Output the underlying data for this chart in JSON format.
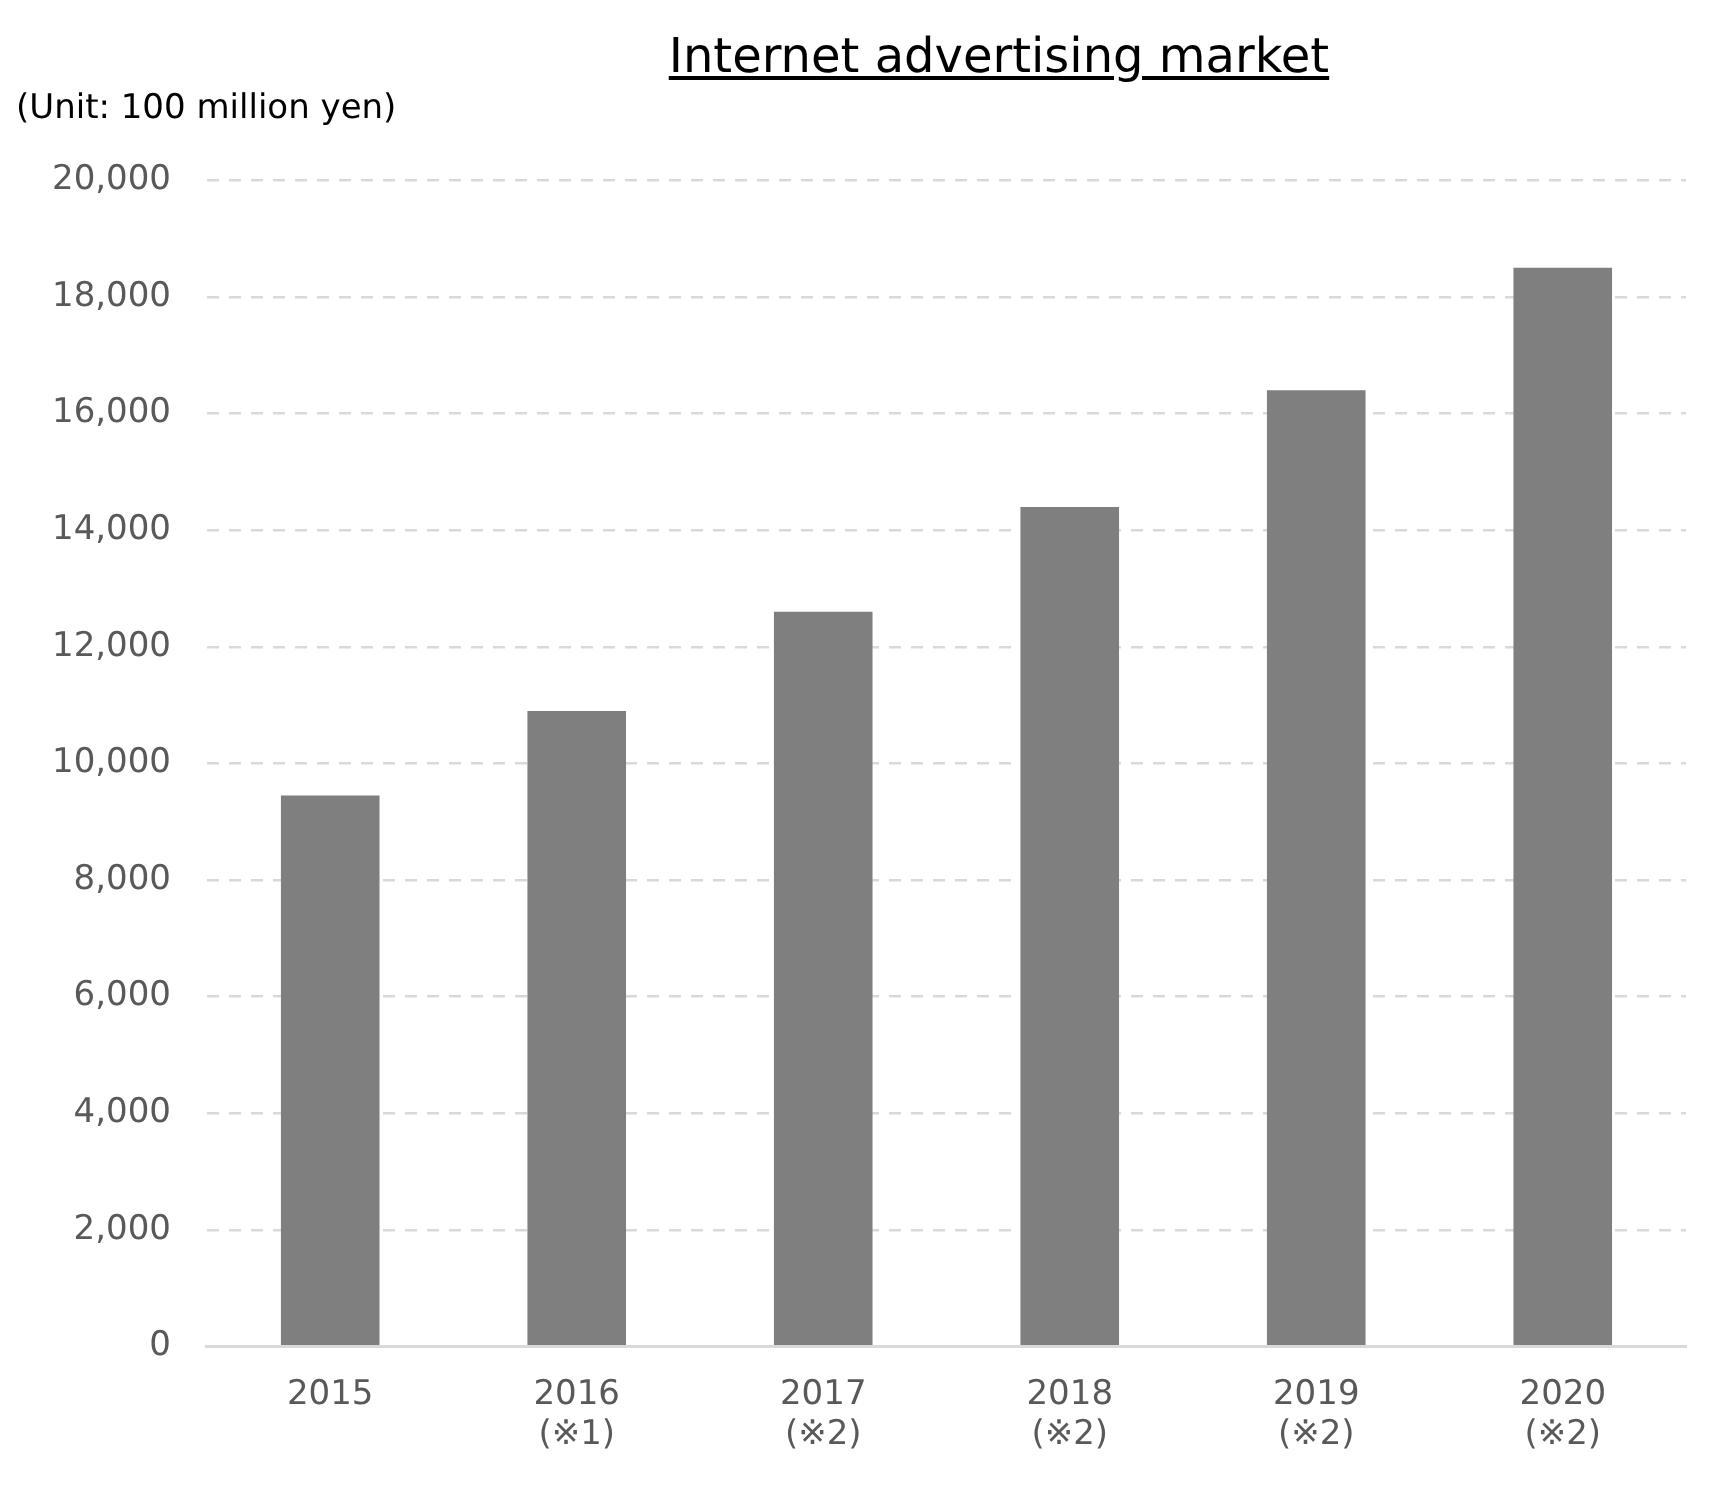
{
  "chart_data": {
    "type": "bar",
    "title": "Internet advertising market",
    "ylabel": "(Unit: 100 million yen)",
    "categories": [
      "2015",
      "2016\n(※1)",
      "2017\n(※2)",
      "2018\n(※2)",
      "2019\n(※2)",
      "2020\n(※2)"
    ],
    "values": [
      9450,
      10900,
      12600,
      14400,
      16400,
      18500
    ],
    "color": "#7f7f7f",
    "ylim": [
      0,
      20000
    ],
    "yticks": [
      0,
      {
        "value": 2000,
        "label": "2,000"
      },
      {
        "value": 4000,
        "label": "4,000"
      },
      {
        "value": 6000,
        "label": "6,000"
      },
      {
        "value": 8000,
        "label": "8,000"
      },
      {
        "value": 10000,
        "label": "10,000"
      },
      {
        "value": 12000,
        "label": "12,000"
      },
      {
        "value": 14000,
        "label": "14,000"
      },
      {
        "value": 16000,
        "label": "16,000"
      },
      {
        "value": 18000,
        "label": "18,000"
      },
      {
        "value": 20000,
        "label": "20,000"
      }
    ],
    "grid": "y",
    "legend": false
  }
}
